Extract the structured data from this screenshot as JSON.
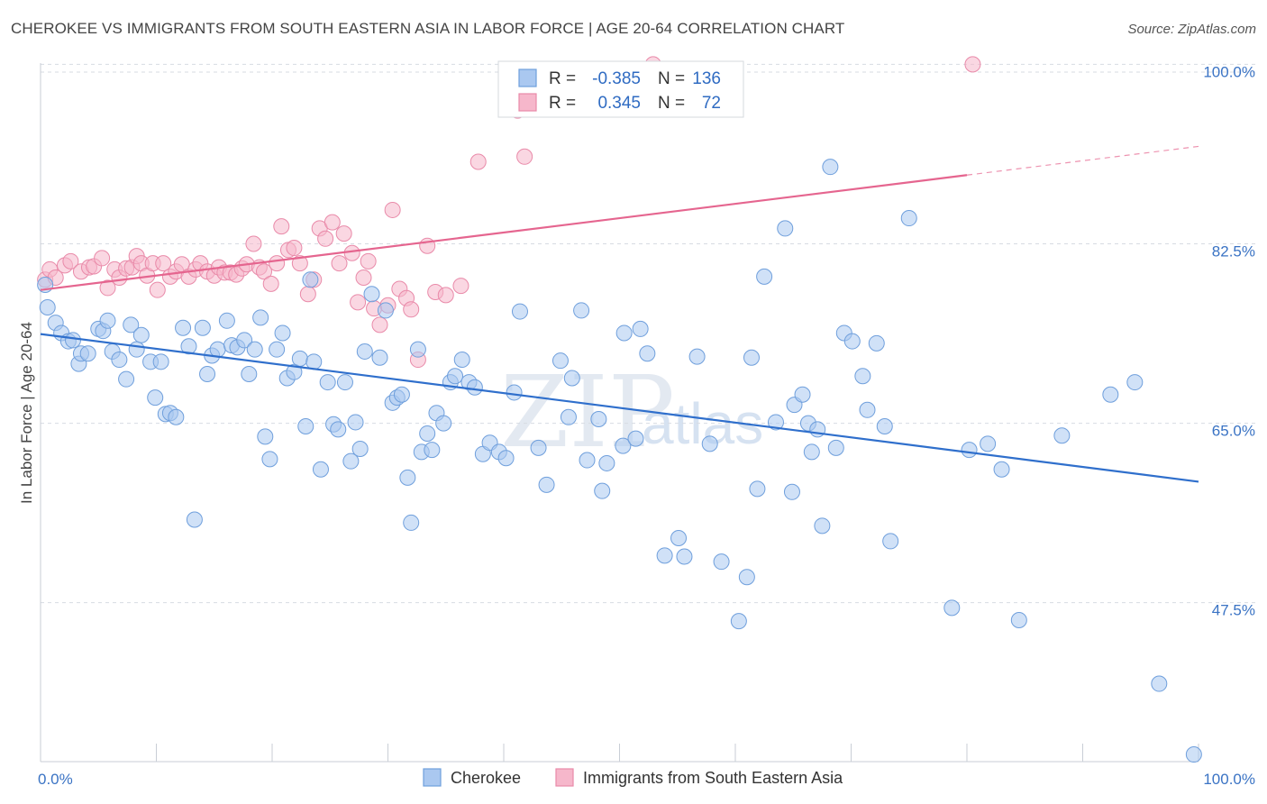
{
  "title": "CHEROKEE VS IMMIGRANTS FROM SOUTH EASTERN ASIA IN LABOR FORCE | AGE 20-64 CORRELATION CHART",
  "source": "Source: ZipAtlas.com",
  "watermark": {
    "zip": "ZIP",
    "atlas": "atlas"
  },
  "colors": {
    "cherokee_fill": "#aac8f0",
    "cherokee_stroke": "#6f9fdc",
    "cherokee_line": "#2f6fcc",
    "sea_fill": "#f6b7cb",
    "sea_stroke": "#e98aa9",
    "sea_line": "#e5658f",
    "grid": "#d7dbe2",
    "tick_text": "#3a73c4"
  },
  "legend": {
    "rows": [
      {
        "r_label": "R =",
        "r_value": "-0.385",
        "n_label": "N =",
        "n_value": "136"
      },
      {
        "r_label": "R =",
        "r_value": "0.345",
        "n_label": "N =",
        "n_value": "72"
      }
    ]
  },
  "bottom_legend": [
    "Cherokee",
    "Immigrants from South Eastern Asia"
  ],
  "chart_data": {
    "type": "scatter",
    "title": "CHEROKEE VS IMMIGRANTS FROM SOUTH EASTERN ASIA IN LABOR FORCE | AGE 20-64 CORRELATION CHART",
    "xlabel": "",
    "ylabel": "In Labor Force | Age 20-64",
    "xlim": [
      0,
      100
    ],
    "ylim": [
      32,
      100
    ],
    "x_tick_labels": [
      "0.0%",
      "100.0%"
    ],
    "y_ticks": [
      47.5,
      65.0,
      82.5,
      100.0
    ],
    "y_tick_labels": [
      "47.5%",
      "65.0%",
      "82.5%",
      "100.0%"
    ],
    "grid": true,
    "legend_placement": "top-center",
    "series": [
      {
        "name": "Cherokee",
        "trend": {
          "x": [
            0,
            100
          ],
          "y": [
            73.7,
            59.3
          ]
        },
        "points": [
          [
            0.4,
            78.5
          ],
          [
            0.6,
            76.3
          ],
          [
            1.3,
            74.8
          ],
          [
            1.8,
            73.8
          ],
          [
            2.4,
            73.0
          ],
          [
            2.8,
            73.1
          ],
          [
            3.3,
            70.8
          ],
          [
            3.5,
            71.8
          ],
          [
            4.1,
            71.8
          ],
          [
            5.0,
            74.2
          ],
          [
            5.4,
            74.0
          ],
          [
            5.8,
            75.0
          ],
          [
            6.2,
            72.0
          ],
          [
            6.8,
            71.2
          ],
          [
            7.4,
            69.3
          ],
          [
            7.8,
            74.6
          ],
          [
            8.3,
            72.2
          ],
          [
            8.7,
            73.6
          ],
          [
            9.5,
            71.0
          ],
          [
            9.9,
            67.5
          ],
          [
            10.4,
            71.0
          ],
          [
            10.8,
            65.9
          ],
          [
            11.2,
            66.0
          ],
          [
            11.7,
            65.6
          ],
          [
            12.3,
            74.3
          ],
          [
            12.8,
            72.5
          ],
          [
            13.3,
            55.6
          ],
          [
            14.0,
            74.3
          ],
          [
            14.4,
            69.8
          ],
          [
            14.8,
            71.6
          ],
          [
            15.3,
            72.2
          ],
          [
            16.1,
            75.0
          ],
          [
            16.5,
            72.6
          ],
          [
            17.0,
            72.4
          ],
          [
            17.6,
            73.1
          ],
          [
            18.0,
            69.8
          ],
          [
            18.5,
            72.2
          ],
          [
            19.0,
            75.3
          ],
          [
            19.4,
            63.7
          ],
          [
            19.8,
            61.5
          ],
          [
            20.4,
            72.2
          ],
          [
            20.9,
            73.8
          ],
          [
            21.3,
            69.4
          ],
          [
            21.9,
            70.0
          ],
          [
            22.4,
            71.3
          ],
          [
            22.9,
            64.7
          ],
          [
            23.3,
            79.0
          ],
          [
            23.6,
            71.0
          ],
          [
            24.2,
            60.5
          ],
          [
            24.8,
            69.0
          ],
          [
            25.3,
            64.9
          ],
          [
            25.7,
            64.4
          ],
          [
            26.3,
            69.0
          ],
          [
            26.8,
            61.3
          ],
          [
            27.2,
            65.1
          ],
          [
            27.6,
            62.5
          ],
          [
            28.0,
            72.0
          ],
          [
            28.6,
            77.6
          ],
          [
            29.3,
            71.4
          ],
          [
            29.8,
            76.0
          ],
          [
            30.4,
            67.0
          ],
          [
            30.8,
            67.5
          ],
          [
            31.2,
            67.8
          ],
          [
            31.7,
            59.7
          ],
          [
            32.0,
            55.3
          ],
          [
            32.6,
            72.2
          ],
          [
            32.9,
            62.2
          ],
          [
            33.4,
            64.0
          ],
          [
            33.8,
            62.4
          ],
          [
            34.2,
            66.0
          ],
          [
            34.8,
            65.0
          ],
          [
            35.4,
            69.0
          ],
          [
            35.8,
            69.6
          ],
          [
            36.4,
            71.2
          ],
          [
            37.0,
            69.0
          ],
          [
            37.5,
            68.5
          ],
          [
            38.2,
            62.0
          ],
          [
            38.8,
            63.1
          ],
          [
            39.6,
            62.2
          ],
          [
            40.2,
            61.6
          ],
          [
            40.9,
            68.0
          ],
          [
            41.4,
            75.9
          ],
          [
            43.0,
            62.6
          ],
          [
            43.7,
            59.0
          ],
          [
            43.9,
            98.7
          ],
          [
            44.9,
            71.1
          ],
          [
            45.6,
            65.6
          ],
          [
            45.9,
            69.4
          ],
          [
            46.7,
            76.0
          ],
          [
            47.2,
            61.4
          ],
          [
            48.2,
            65.4
          ],
          [
            48.5,
            58.4
          ],
          [
            48.9,
            61.1
          ],
          [
            50.3,
            62.8
          ],
          [
            50.4,
            73.8
          ],
          [
            51.4,
            63.5
          ],
          [
            51.8,
            74.2
          ],
          [
            52.4,
            71.8
          ],
          [
            53.9,
            52.1
          ],
          [
            55.1,
            53.8
          ],
          [
            55.6,
            52.0
          ],
          [
            56.7,
            71.5
          ],
          [
            57.8,
            63.0
          ],
          [
            58.8,
            51.5
          ],
          [
            60.3,
            45.7
          ],
          [
            61.0,
            50.0
          ],
          [
            61.4,
            71.4
          ],
          [
            61.9,
            58.6
          ],
          [
            62.5,
            79.3
          ],
          [
            63.5,
            65.1
          ],
          [
            64.3,
            84.0
          ],
          [
            64.9,
            58.3
          ],
          [
            65.1,
            66.8
          ],
          [
            65.8,
            67.8
          ],
          [
            66.3,
            65.0
          ],
          [
            67.1,
            64.4
          ],
          [
            67.5,
            55.0
          ],
          [
            68.2,
            90.0
          ],
          [
            68.7,
            62.6
          ],
          [
            69.4,
            73.8
          ],
          [
            70.1,
            73.0
          ],
          [
            71.0,
            69.6
          ],
          [
            71.4,
            66.3
          ],
          [
            72.2,
            72.8
          ],
          [
            72.9,
            64.7
          ],
          [
            73.4,
            53.5
          ],
          [
            75.0,
            85.0
          ],
          [
            78.7,
            47.0
          ],
          [
            80.2,
            62.4
          ],
          [
            81.8,
            63.0
          ],
          [
            83.0,
            60.5
          ],
          [
            84.5,
            45.8
          ],
          [
            88.2,
            63.8
          ],
          [
            92.4,
            67.8
          ],
          [
            94.5,
            69.0
          ],
          [
            96.6,
            39.6
          ],
          [
            99.6,
            32.7
          ],
          [
            66.6,
            62.2
          ]
        ]
      },
      {
        "name": "Immigrants from South Eastern Asia",
        "trend": {
          "x": [
            0,
            80
          ],
          "y": [
            78.0,
            89.2
          ]
        },
        "trend_extension": {
          "x": [
            80,
            100
          ],
          "y": [
            89.2,
            92.0
          ]
        },
        "points": [
          [
            0.4,
            79.0
          ],
          [
            0.8,
            80.0
          ],
          [
            1.3,
            79.2
          ],
          [
            2.1,
            80.4
          ],
          [
            2.6,
            80.8
          ],
          [
            3.5,
            79.8
          ],
          [
            4.2,
            80.2
          ],
          [
            4.6,
            80.3
          ],
          [
            5.3,
            81.1
          ],
          [
            5.8,
            78.2
          ],
          [
            6.4,
            80.0
          ],
          [
            6.8,
            79.2
          ],
          [
            7.4,
            80.1
          ],
          [
            7.9,
            80.2
          ],
          [
            8.3,
            81.3
          ],
          [
            8.7,
            80.6
          ],
          [
            9.2,
            79.4
          ],
          [
            9.7,
            80.6
          ],
          [
            10.1,
            78.0
          ],
          [
            10.6,
            80.6
          ],
          [
            11.2,
            79.3
          ],
          [
            11.7,
            79.8
          ],
          [
            12.2,
            80.5
          ],
          [
            12.8,
            79.3
          ],
          [
            13.4,
            80.0
          ],
          [
            13.8,
            80.6
          ],
          [
            14.4,
            79.8
          ],
          [
            15.0,
            79.4
          ],
          [
            15.4,
            80.2
          ],
          [
            15.9,
            79.7
          ],
          [
            16.4,
            79.7
          ],
          [
            16.9,
            79.5
          ],
          [
            17.4,
            80.1
          ],
          [
            17.8,
            80.5
          ],
          [
            18.4,
            82.5
          ],
          [
            18.9,
            80.2
          ],
          [
            19.3,
            79.8
          ],
          [
            19.9,
            78.6
          ],
          [
            20.4,
            80.6
          ],
          [
            20.8,
            84.2
          ],
          [
            21.4,
            81.9
          ],
          [
            21.9,
            82.1
          ],
          [
            22.4,
            80.6
          ],
          [
            23.1,
            77.6
          ],
          [
            23.6,
            79.0
          ],
          [
            24.1,
            84.0
          ],
          [
            24.6,
            83.0
          ],
          [
            25.2,
            84.6
          ],
          [
            25.8,
            80.6
          ],
          [
            26.2,
            83.5
          ],
          [
            26.9,
            81.6
          ],
          [
            27.4,
            76.8
          ],
          [
            27.9,
            79.2
          ],
          [
            28.3,
            80.8
          ],
          [
            28.8,
            76.2
          ],
          [
            29.3,
            74.6
          ],
          [
            30.0,
            76.5
          ],
          [
            30.4,
            85.8
          ],
          [
            31.0,
            78.1
          ],
          [
            31.6,
            77.2
          ],
          [
            32.0,
            76.1
          ],
          [
            32.6,
            71.2
          ],
          [
            33.4,
            82.3
          ],
          [
            34.1,
            77.8
          ],
          [
            35.0,
            77.5
          ],
          [
            36.3,
            78.4
          ],
          [
            37.8,
            90.5
          ],
          [
            41.2,
            95.5
          ],
          [
            41.8,
            91.0
          ],
          [
            50.5,
            96.0
          ],
          [
            52.9,
            100.0
          ],
          [
            80.5,
            100.0
          ]
        ]
      }
    ]
  }
}
